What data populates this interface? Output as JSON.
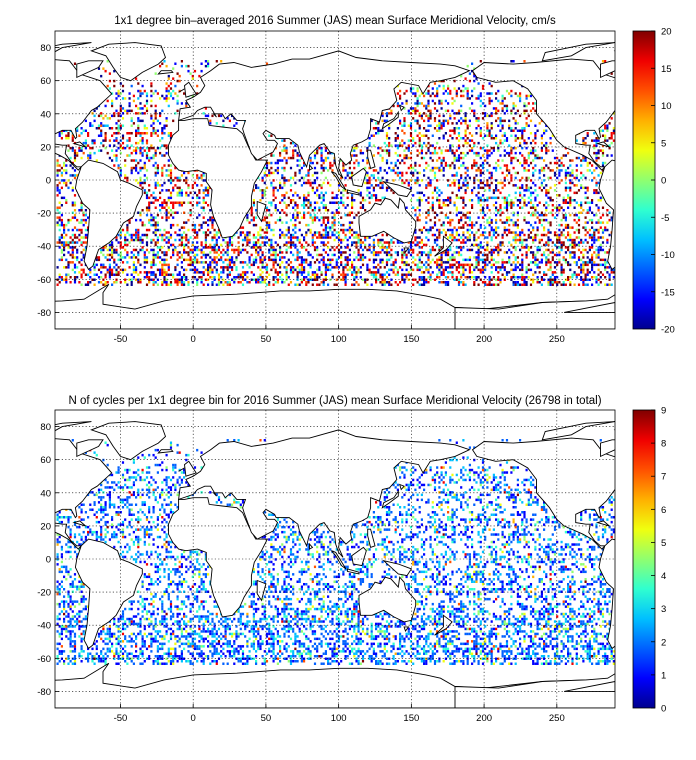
{
  "colors": {
    "colormap": [
      "#00008f",
      "#0000ff",
      "#0060ff",
      "#00c0ff",
      "#30ffcf",
      "#90ff6f",
      "#f0ff0f",
      "#ffb000",
      "#ff5000",
      "#f00000",
      "#800000"
    ],
    "land_stroke": "#000000"
  },
  "chart_data": [
    {
      "type": "heatmap",
      "title": "1x1 degree bin–averaged 2016 Summer (JAS) mean Surface Meridional Velocity, cm/s",
      "xlabel": "",
      "ylabel": "",
      "xlim": [
        -95,
        290
      ],
      "ylim": [
        -90,
        90
      ],
      "x_ticks": [
        "-50",
        "0",
        "50",
        "100",
        "150",
        "200",
        "250"
      ],
      "y_ticks": [
        "80",
        "60",
        "40",
        "20",
        "0",
        "-20",
        "-40",
        "-60",
        "-80"
      ],
      "grid": true,
      "colorbar": {
        "min": -20,
        "max": 20,
        "ticks": [
          "20",
          "15",
          "10",
          "5",
          "0",
          "-5",
          "-10",
          "-15",
          "-20"
        ]
      },
      "value_range": [
        -20,
        20
      ],
      "note_values": "dense scattered 1x1 degree bins over ocean regions, values spanning full colorbar range"
    },
    {
      "type": "heatmap",
      "title": "N of cycles per 1x1 degree bin for 2016 Summer (JAS) mean Surface Meridional Velocity (26798 in total)",
      "xlabel": "",
      "ylabel": "",
      "xlim": [
        -95,
        290
      ],
      "ylim": [
        -90,
        90
      ],
      "x_ticks": [
        "-50",
        "0",
        "50",
        "100",
        "150",
        "200",
        "250"
      ],
      "y_ticks": [
        "80",
        "60",
        "40",
        "20",
        "0",
        "-20",
        "-40",
        "-60",
        "-80"
      ],
      "grid": true,
      "colorbar": {
        "min": 0,
        "max": 9,
        "ticks": [
          "9",
          "8",
          "7",
          "6",
          "5",
          "4",
          "3",
          "2",
          "1",
          "0"
        ]
      },
      "value_range": [
        0,
        9
      ],
      "total": 26798
    }
  ]
}
